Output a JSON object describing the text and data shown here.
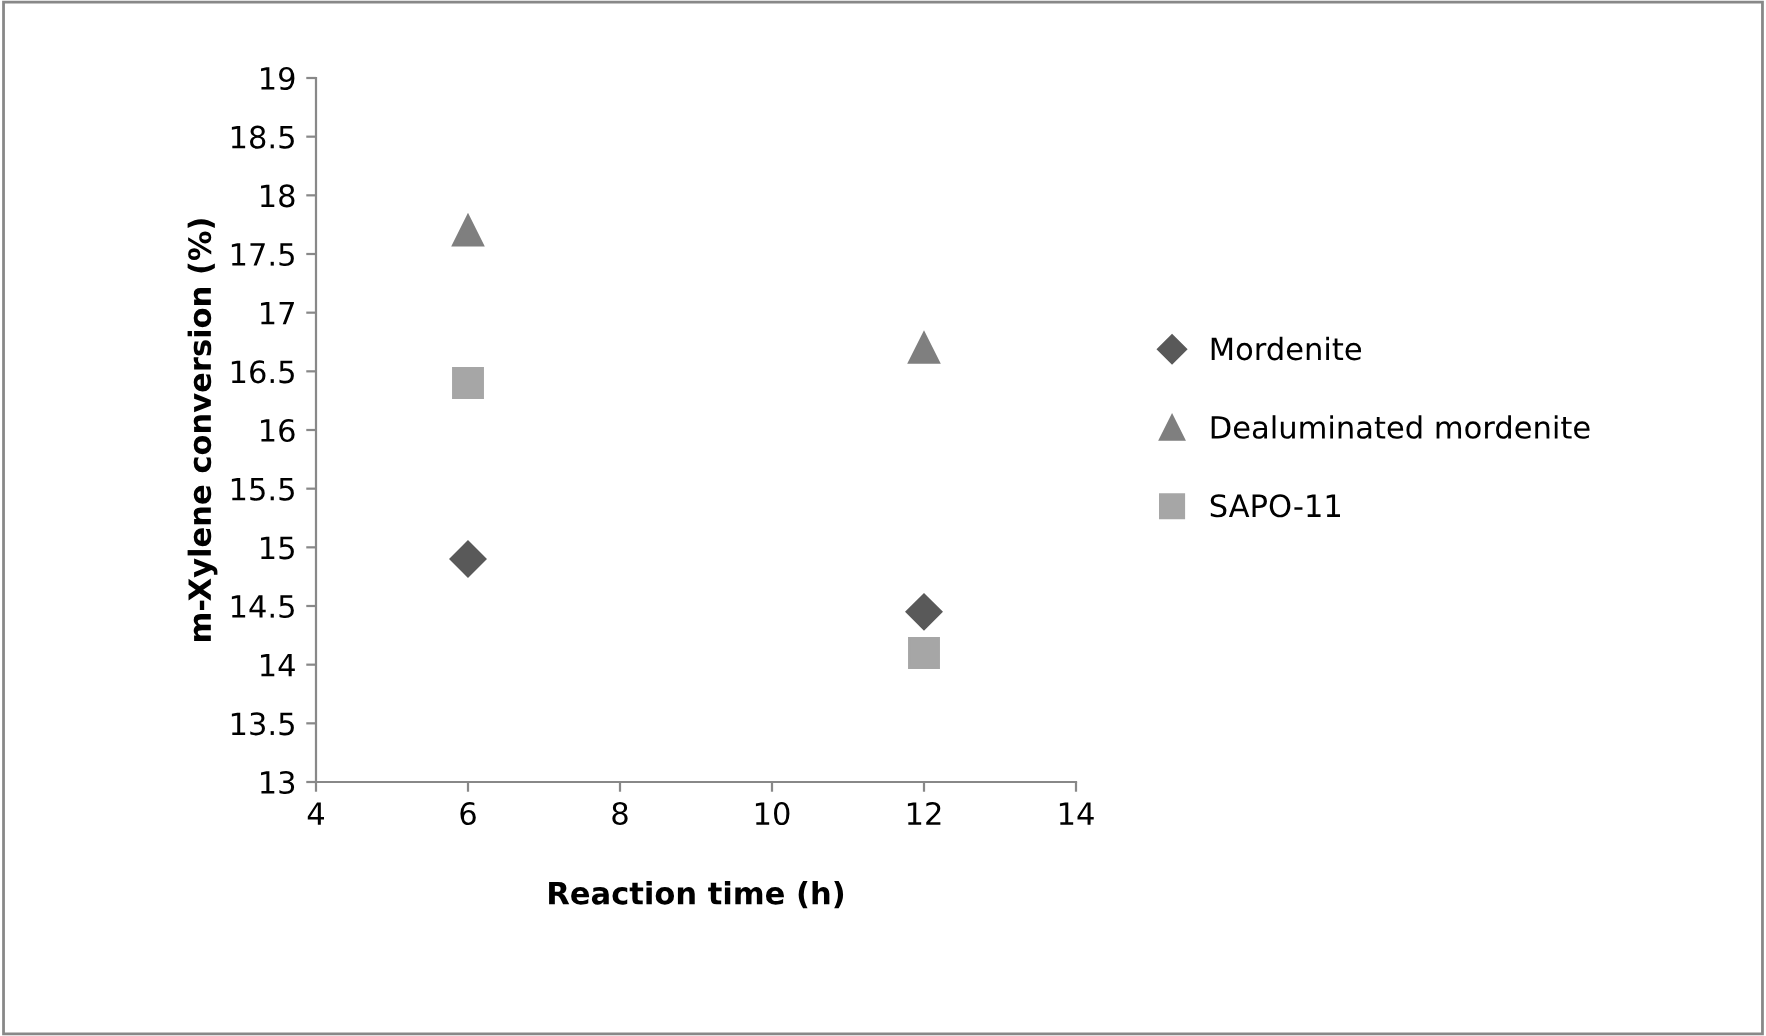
{
  "chart_data": {
    "type": "scatter",
    "xlabel": "Reaction time (h)",
    "ylabel": "m-Xylene conversion (%)",
    "x": [
      6,
      12
    ],
    "xlim": [
      4,
      14
    ],
    "xticks": [
      4,
      6,
      8,
      10,
      12,
      14
    ],
    "ylim": [
      13,
      19
    ],
    "yticks": [
      13,
      13.5,
      14,
      14.5,
      15,
      15.5,
      16,
      16.5,
      17,
      17.5,
      18,
      18.5,
      19
    ],
    "legend": "right",
    "series": [
      {
        "name": "Mordenite",
        "color": "#595959",
        "marker": "diamond",
        "values": [
          14.9,
          14.45
        ]
      },
      {
        "name": "Dealuminated mordenite",
        "color": "#7f7f7f",
        "marker": "triangle",
        "values": [
          17.7,
          16.7
        ]
      },
      {
        "name": "SAPO-11",
        "color": "#a6a6a6",
        "marker": "square",
        "values": [
          16.4,
          14.1
        ]
      }
    ]
  }
}
